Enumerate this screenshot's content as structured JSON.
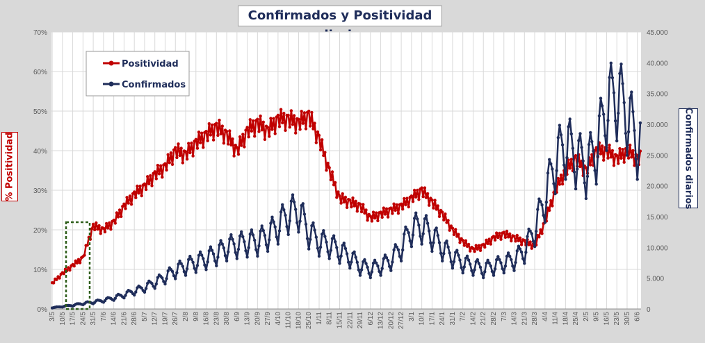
{
  "chart_data": {
    "type": "line",
    "title": "Confirmados  y Positividad  diaria",
    "ylabel_left": "% Positividad",
    "ylabel_right": "Confirmados diarios",
    "y_left_ticks": [
      "0%",
      "10%",
      "20%",
      "30%",
      "40%",
      "50%",
      "60%",
      "70%"
    ],
    "y_left_lim": [
      0,
      70
    ],
    "y_right_ticks": [
      "0",
      "5.000",
      "10.000",
      "15.000",
      "20.000",
      "25.000",
      "30.000",
      "35.000",
      "40.000",
      "45.000"
    ],
    "y_right_lim": [
      0,
      45000
    ],
    "x_ticks": [
      "3/5",
      "10/5",
      "17/5",
      "24/5",
      "31/5",
      "7/6",
      "14/6",
      "21/6",
      "28/6",
      "5/7",
      "12/7",
      "19/7",
      "26/7",
      "2/8",
      "9/8",
      "16/8",
      "23/8",
      "30/8",
      "6/9",
      "13/9",
      "20/9",
      "27/9",
      "4/10",
      "11/10",
      "18/10",
      "25/10",
      "1/11",
      "8/11",
      "15/11",
      "22/11",
      "29/11",
      "6/12",
      "13/12",
      "20/12",
      "27/12",
      "3/1",
      "10/1",
      "17/1",
      "24/1",
      "31/1",
      "7/2",
      "14/2",
      "21/2",
      "28/2",
      "7/3",
      "14/3",
      "21/3",
      "28/3",
      "4/4",
      "11/4",
      "18/4",
      "25/4",
      "2/5",
      "9/5",
      "16/5",
      "23/5",
      "30/5",
      "6/6"
    ],
    "grid": true,
    "legend_position": "top-left",
    "series": [
      {
        "name": "Positividad",
        "axis": "left",
        "color": "#c00000",
        "weekly_values": [
          6.5,
          9,
          11,
          13,
          21,
          20,
          22,
          26,
          29,
          31,
          34,
          36,
          40,
          39,
          42,
          44,
          46,
          44,
          40,
          45,
          47,
          45,
          48,
          48,
          47,
          49,
          43,
          35,
          28,
          27,
          26,
          23,
          24,
          25,
          26,
          28,
          30,
          27,
          24,
          20,
          17,
          15,
          16,
          18,
          19,
          18,
          17,
          16,
          22,
          30,
          35,
          38,
          35,
          40,
          40,
          38,
          40,
          38
        ]
      },
      {
        "name": "Confirmados",
        "axis": "right",
        "color": "#1f2d5a",
        "weekly_values": [
          200,
          400,
          600,
          900,
          1100,
          1400,
          1800,
          2300,
          2900,
          3500,
          4300,
          5200,
          6300,
          7000,
          7600,
          8200,
          9000,
          10000,
          10500,
          10800,
          11000,
          12000,
          13500,
          15500,
          16000,
          12500,
          11000,
          10500,
          9500,
          8500,
          7000,
          6500,
          7000,
          8000,
          10000,
          13000,
          13500,
          12000,
          10000,
          8500,
          7500,
          7000,
          6500,
          7000,
          7500,
          8000,
          9500,
          13000,
          18000,
          24000,
          27000,
          25000,
          23000,
          26000,
          33000,
          35000,
          32000,
          27000
        ]
      }
    ]
  }
}
